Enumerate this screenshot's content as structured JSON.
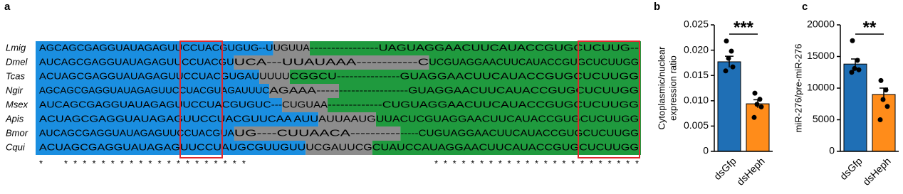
{
  "panel_label": "a",
  "alignment": {
    "rows": [
      {
        "species": "Lmig",
        "segments": [
          {
            "text": "AGCAGCGAGGUAUAGAGUUCCUACGUGUG--U",
            "color": "#1a8ee0"
          },
          {
            "text": "UGUUA",
            "color": "#8c8c8c"
          },
          {
            "text": "----------------UAGUAGGAACUUCAUACCGUGCUCUUG--",
            "color": "#1f9a3e"
          }
        ]
      },
      {
        "species": "Dmel",
        "segments": [
          {
            "text": "AUCAGCGAGGUAUAGAGUUCCUACGU",
            "color": "#1a8ee0"
          },
          {
            "text": "UCA---UUAUAAA------------C",
            "color": "#8c8c8c"
          },
          {
            "text": "UCGUAGGAACUUCAUACCGUGCUCUUGG",
            "color": "#1f9a3e"
          }
        ]
      },
      {
        "species": "Tcas",
        "segments": [
          {
            "text": "ACUAGCGAGGUAUAGAGUUCCUACGUGAU",
            "color": "#1a8ee0"
          },
          {
            "text": "UUUU",
            "color": "#8c8c8c"
          },
          {
            "text": "CGGCU---------------GUAGGAACUUCAUACCGUGCUCUUGG",
            "color": "#1f9a3e"
          }
        ]
      },
      {
        "species": "Ngir",
        "segments": [
          {
            "text": "AGCAGCGAGGUAUAGAGUUCCUACGUAGAUUUC",
            "color": "#1a8ee0"
          },
          {
            "text": "AGAAA-----",
            "color": "#8c8c8c"
          },
          {
            "text": "-----------------GUAGGAACUUCAUACCGUGCUCUUGG",
            "color": "#1f9a3e"
          }
        ]
      },
      {
        "species": "Msex",
        "segments": [
          {
            "text": "AUCAGCGAGGUAUAGAGUUCCUACGUGUC---",
            "color": "#1a8ee0"
          },
          {
            "text": "CUGUAA",
            "color": "#8c8c8c"
          },
          {
            "text": "-------------CUGUAGGAACUUCAUACCGUGCUCUUGG",
            "color": "#1f9a3e"
          }
        ]
      },
      {
        "species": "Apis",
        "segments": [
          {
            "text": "ACUAGCGAGGUAUAGAGUUCCUACGUUCAA AUU",
            "color": "#1a8ee0"
          },
          {
            "text": "AUUAAUG",
            "color": "#8c8c8c"
          },
          {
            "text": "UUACUCGUAGGAACUUCAUACCGUGCUCUUGG",
            "color": "#1f9a3e"
          }
        ]
      },
      {
        "species": "Bmor",
        "segments": [
          {
            "text": "AUCAGCGAGGUAUAGAGUUCCUACGUA",
            "color": "#1a8ee0"
          },
          {
            "text": "UG----CUUAACA----------",
            "color": "#8c8c8c"
          },
          {
            "text": "-----CUGUAGGAACUUCAUACCGUGCUCUUGG",
            "color": "#1f9a3e"
          }
        ]
      },
      {
        "species": "Cqui",
        "segments": [
          {
            "text": "ACUAGCGAGGUAUAGAGUUCCUAUGCGUUGUU",
            "color": "#1a8ee0"
          },
          {
            "text": "UCGAUUCG",
            "color": "#8c8c8c"
          },
          {
            "text": "CUAUCCAUAGGAACUUCAUACCGUGCUCUUGG",
            "color": "#1f9a3e"
          }
        ]
      }
    ],
    "conservation": [
      "*",
      "********************",
      "***********************"
    ]
  },
  "chart_data": [
    {
      "type": "bar",
      "panel": "b",
      "ylabel": [
        "Cytoplasmic/nuclear",
        "expression ratio"
      ],
      "categories": [
        "dsGfp",
        "dsHeph"
      ],
      "values": [
        0.0177,
        0.0094
      ],
      "errors": [
        0.0011,
        0.0008
      ],
      "colors": [
        "#1f6fb5",
        "#ff8c1a"
      ],
      "points": [
        [
          0.0218,
          0.0198,
          0.0184,
          0.0167,
          0.0159
        ],
        [
          0.0115,
          0.0103,
          0.0093,
          0.0088,
          0.0067
        ]
      ],
      "significance": "***",
      "ylim": [
        0,
        0.025
      ],
      "yticks": [
        0,
        0.005,
        {
          "value": 0.01,
          "label": "0.010"
        },
        0.015,
        {
          "value": 0.02,
          "label": "0.020"
        },
        0.025
      ]
    },
    {
      "type": "bar",
      "panel": "c",
      "ylabel": [
        "miR-276/pre-miR-276"
      ],
      "categories": [
        "dsGfp",
        "dsHeph"
      ],
      "values": [
        13800,
        9000
      ],
      "errors": [
        800,
        1000
      ],
      "colors": [
        "#1f6fb5",
        "#ff8c1a"
      ],
      "points": [
        [
          17500,
          14400,
          13100,
          12900,
          12500
        ],
        [
          11200,
          9700,
          8200,
          7100,
          5000
        ]
      ],
      "significance": "**",
      "ylim": [
        0,
        20000
      ],
      "yticks": [
        0,
        5000,
        10000,
        15000,
        20000
      ]
    }
  ]
}
